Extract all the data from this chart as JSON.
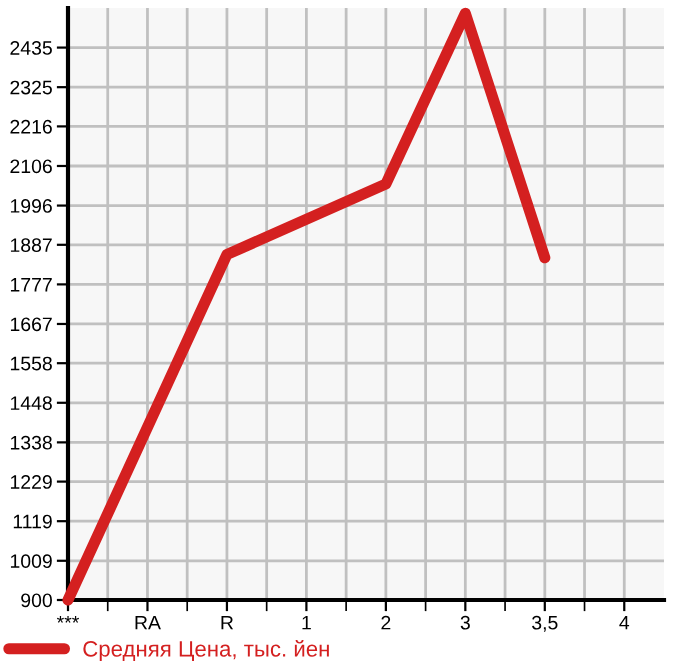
{
  "chart_data": {
    "type": "line",
    "categories": [
      "***",
      "RA",
      "R",
      "1",
      "2",
      "3",
      "3,5",
      "4"
    ],
    "series": [
      {
        "name": "Средняя Цена, тыс. йен",
        "color": "#d42020",
        "values": [
          900,
          null,
          1860,
          null,
          2056,
          2530,
          1851,
          null
        ]
      }
    ],
    "ylim": [
      900,
      2545
    ],
    "yticks": [
      900,
      1009,
      1119,
      1229,
      1338,
      1448,
      1558,
      1667,
      1777,
      1887,
      1996,
      2106,
      2216,
      2325,
      2435
    ],
    "grid": true,
    "legend": "bottom",
    "marker": "none",
    "line_style": "solid"
  }
}
